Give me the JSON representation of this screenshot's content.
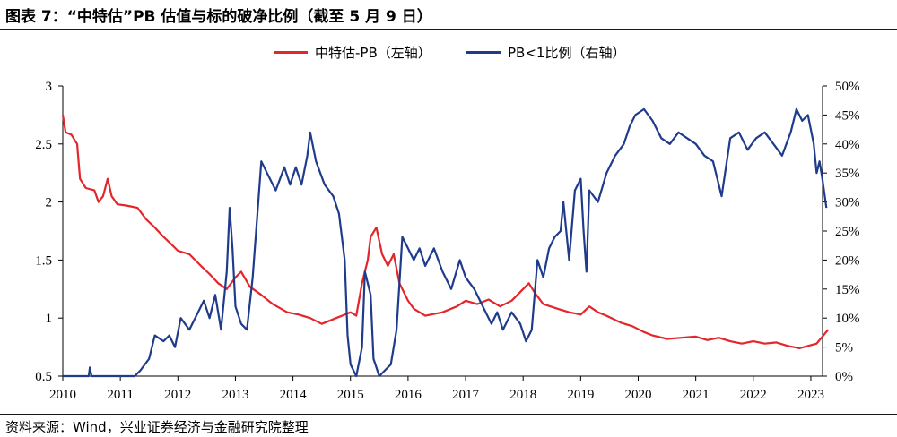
{
  "title": "图表 7：“中特估”PB 估值与标的破净比例（截至 5 月 9 日）",
  "source": "资料来源：Wind，兴业证券经济与金融研究院整理",
  "chart_data": {
    "type": "line",
    "legend_position": "top-center",
    "grid": false,
    "x_ticks": [
      "2010",
      "2011",
      "2012",
      "2013",
      "2014",
      "2015",
      "2016",
      "2017",
      "2018",
      "2019",
      "2020",
      "2021",
      "2022",
      "2023"
    ],
    "y_left": {
      "ticks": [
        "0.5",
        "1",
        "1.5",
        "2",
        "2.5",
        "3"
      ],
      "range": [
        0.5,
        3
      ]
    },
    "y_right": {
      "ticks": [
        "0%",
        "5%",
        "10%",
        "15%",
        "20%",
        "25%",
        "30%",
        "35%",
        "40%",
        "45%",
        "50%"
      ],
      "range": [
        0,
        50
      ]
    },
    "series": [
      {
        "name": "中特估-PB（左轴）",
        "axis": "left",
        "color": "#e3262b",
        "points": [
          [
            2010.0,
            2.75
          ],
          [
            2010.05,
            2.6
          ],
          [
            2010.15,
            2.58
          ],
          [
            2010.25,
            2.5
          ],
          [
            2010.3,
            2.2
          ],
          [
            2010.4,
            2.12
          ],
          [
            2010.55,
            2.1
          ],
          [
            2010.62,
            2.0
          ],
          [
            2010.7,
            2.05
          ],
          [
            2010.78,
            2.2
          ],
          [
            2010.85,
            2.05
          ],
          [
            2010.95,
            1.98
          ],
          [
            2011.1,
            1.97
          ],
          [
            2011.3,
            1.95
          ],
          [
            2011.45,
            1.85
          ],
          [
            2011.6,
            1.78
          ],
          [
            2011.75,
            1.7
          ],
          [
            2011.9,
            1.63
          ],
          [
            2012.0,
            1.58
          ],
          [
            2012.2,
            1.55
          ],
          [
            2012.4,
            1.45
          ],
          [
            2012.55,
            1.38
          ],
          [
            2012.7,
            1.3
          ],
          [
            2012.85,
            1.25
          ],
          [
            2013.0,
            1.35
          ],
          [
            2013.1,
            1.4
          ],
          [
            2013.25,
            1.27
          ],
          [
            2013.45,
            1.2
          ],
          [
            2013.65,
            1.12
          ],
          [
            2013.9,
            1.05
          ],
          [
            2014.1,
            1.03
          ],
          [
            2014.3,
            1.0
          ],
          [
            2014.5,
            0.95
          ],
          [
            2014.75,
            1.0
          ],
          [
            2015.0,
            1.05
          ],
          [
            2015.1,
            1.02
          ],
          [
            2015.2,
            1.3
          ],
          [
            2015.3,
            1.5
          ],
          [
            2015.35,
            1.7
          ],
          [
            2015.45,
            1.78
          ],
          [
            2015.55,
            1.55
          ],
          [
            2015.65,
            1.45
          ],
          [
            2015.75,
            1.55
          ],
          [
            2015.85,
            1.3
          ],
          [
            2016.0,
            1.15
          ],
          [
            2016.1,
            1.08
          ],
          [
            2016.3,
            1.02
          ],
          [
            2016.6,
            1.05
          ],
          [
            2016.85,
            1.1
          ],
          [
            2017.0,
            1.15
          ],
          [
            2017.2,
            1.12
          ],
          [
            2017.4,
            1.16
          ],
          [
            2017.6,
            1.1
          ],
          [
            2017.8,
            1.15
          ],
          [
            2018.0,
            1.25
          ],
          [
            2018.1,
            1.3
          ],
          [
            2018.2,
            1.22
          ],
          [
            2018.35,
            1.12
          ],
          [
            2018.6,
            1.08
          ],
          [
            2018.8,
            1.05
          ],
          [
            2019.0,
            1.03
          ],
          [
            2019.15,
            1.1
          ],
          [
            2019.3,
            1.05
          ],
          [
            2019.45,
            1.02
          ],
          [
            2019.7,
            0.96
          ],
          [
            2019.9,
            0.93
          ],
          [
            2020.1,
            0.88
          ],
          [
            2020.25,
            0.85
          ],
          [
            2020.5,
            0.82
          ],
          [
            2020.75,
            0.83
          ],
          [
            2021.0,
            0.84
          ],
          [
            2021.2,
            0.81
          ],
          [
            2021.4,
            0.83
          ],
          [
            2021.6,
            0.8
          ],
          [
            2021.8,
            0.78
          ],
          [
            2022.0,
            0.8
          ],
          [
            2022.2,
            0.78
          ],
          [
            2022.4,
            0.79
          ],
          [
            2022.6,
            0.76
          ],
          [
            2022.8,
            0.74
          ],
          [
            2022.95,
            0.76
          ],
          [
            2023.1,
            0.78
          ],
          [
            2023.2,
            0.84
          ],
          [
            2023.3,
            0.9
          ]
        ]
      },
      {
        "name": "PB<1比例（右轴）",
        "axis": "right",
        "color": "#1f3c8c",
        "points": [
          [
            2010.0,
            0
          ],
          [
            2010.45,
            0
          ],
          [
            2010.47,
            1.5
          ],
          [
            2010.5,
            0
          ],
          [
            2011.25,
            0
          ],
          [
            2011.35,
            1
          ],
          [
            2011.5,
            3
          ],
          [
            2011.6,
            7
          ],
          [
            2011.75,
            6
          ],
          [
            2011.85,
            7
          ],
          [
            2011.95,
            5
          ],
          [
            2012.05,
            10
          ],
          [
            2012.2,
            8
          ],
          [
            2012.35,
            11
          ],
          [
            2012.45,
            13
          ],
          [
            2012.55,
            10
          ],
          [
            2012.65,
            14
          ],
          [
            2012.75,
            8
          ],
          [
            2012.85,
            18
          ],
          [
            2012.9,
            29
          ],
          [
            2012.95,
            22
          ],
          [
            2013.0,
            12
          ],
          [
            2013.1,
            9
          ],
          [
            2013.2,
            8
          ],
          [
            2013.3,
            17
          ],
          [
            2013.45,
            37
          ],
          [
            2013.55,
            35
          ],
          [
            2013.7,
            32
          ],
          [
            2013.85,
            36
          ],
          [
            2013.95,
            33
          ],
          [
            2014.05,
            36
          ],
          [
            2014.15,
            33
          ],
          [
            2014.25,
            38
          ],
          [
            2014.3,
            42
          ],
          [
            2014.4,
            37
          ],
          [
            2014.55,
            33
          ],
          [
            2014.7,
            31
          ],
          [
            2014.8,
            28
          ],
          [
            2014.9,
            20
          ],
          [
            2014.95,
            7
          ],
          [
            2015.0,
            2
          ],
          [
            2015.1,
            0
          ],
          [
            2015.2,
            5
          ],
          [
            2015.25,
            18
          ],
          [
            2015.35,
            14
          ],
          [
            2015.4,
            3
          ],
          [
            2015.5,
            0
          ],
          [
            2015.6,
            1
          ],
          [
            2015.7,
            2
          ],
          [
            2015.8,
            8
          ],
          [
            2015.9,
            24
          ],
          [
            2016.0,
            22
          ],
          [
            2016.1,
            20
          ],
          [
            2016.2,
            22
          ],
          [
            2016.3,
            19
          ],
          [
            2016.45,
            22
          ],
          [
            2016.6,
            18
          ],
          [
            2016.75,
            15
          ],
          [
            2016.9,
            20
          ],
          [
            2017.0,
            17
          ],
          [
            2017.15,
            15
          ],
          [
            2017.3,
            12
          ],
          [
            2017.45,
            9
          ],
          [
            2017.55,
            11
          ],
          [
            2017.65,
            8
          ],
          [
            2017.8,
            11
          ],
          [
            2017.95,
            9
          ],
          [
            2018.05,
            6
          ],
          [
            2018.15,
            8
          ],
          [
            2018.25,
            20
          ],
          [
            2018.35,
            17
          ],
          [
            2018.45,
            22
          ],
          [
            2018.55,
            24
          ],
          [
            2018.65,
            25
          ],
          [
            2018.7,
            30
          ],
          [
            2018.8,
            20
          ],
          [
            2018.9,
            32
          ],
          [
            2019.0,
            34
          ],
          [
            2019.05,
            25
          ],
          [
            2019.1,
            18
          ],
          [
            2019.15,
            32
          ],
          [
            2019.3,
            30
          ],
          [
            2019.45,
            35
          ],
          [
            2019.6,
            38
          ],
          [
            2019.75,
            40
          ],
          [
            2019.85,
            43
          ],
          [
            2019.95,
            45
          ],
          [
            2020.1,
            46
          ],
          [
            2020.25,
            44
          ],
          [
            2020.4,
            41
          ],
          [
            2020.55,
            40
          ],
          [
            2020.7,
            42
          ],
          [
            2020.85,
            41
          ],
          [
            2021.0,
            40
          ],
          [
            2021.15,
            38
          ],
          [
            2021.3,
            37
          ],
          [
            2021.45,
            31
          ],
          [
            2021.6,
            41
          ],
          [
            2021.75,
            42
          ],
          [
            2021.9,
            39
          ],
          [
            2022.05,
            41
          ],
          [
            2022.2,
            42
          ],
          [
            2022.35,
            40
          ],
          [
            2022.5,
            38
          ],
          [
            2022.65,
            42
          ],
          [
            2022.75,
            46
          ],
          [
            2022.85,
            44
          ],
          [
            2022.95,
            45
          ],
          [
            2023.05,
            40
          ],
          [
            2023.1,
            35
          ],
          [
            2023.15,
            37
          ],
          [
            2023.2,
            34
          ],
          [
            2023.27,
            29
          ]
        ]
      }
    ]
  }
}
